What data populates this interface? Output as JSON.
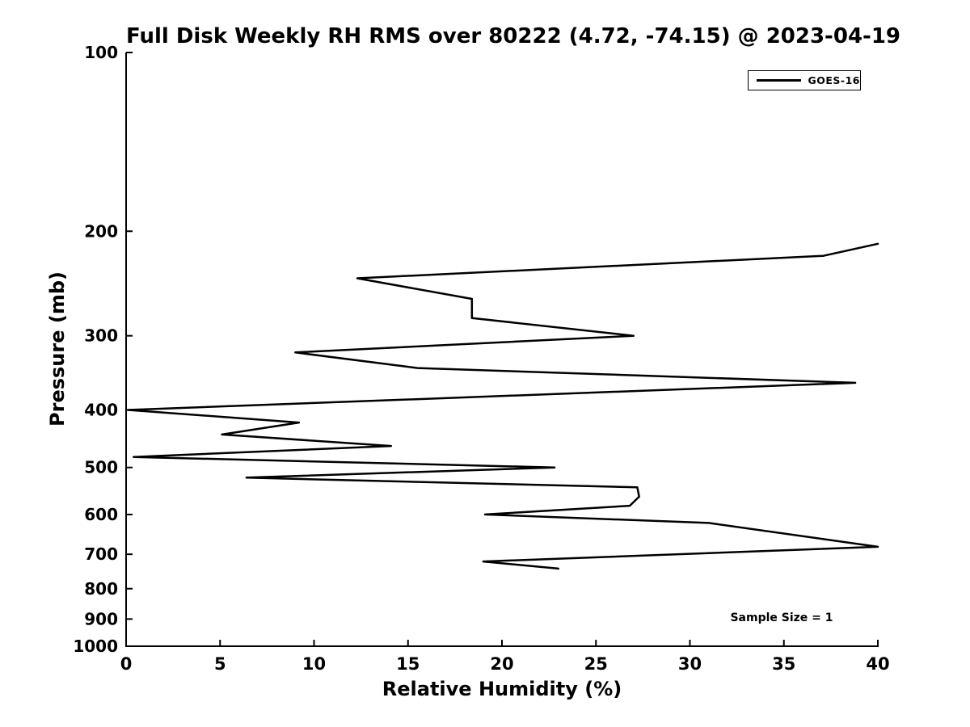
{
  "chart_data": {
    "type": "line",
    "title": "Full Disk Weekly RH RMS over 80222 (4.72, -74.15) @ 2023-04-19",
    "xlabel": "Relative Humidity (%)",
    "ylabel": "Pressure (mb)",
    "xlim": [
      0,
      40
    ],
    "ylim_pressure_mb": [
      1000,
      100
    ],
    "y_scale": "log",
    "x_ticks": [
      0,
      5,
      10,
      15,
      20,
      25,
      30,
      35,
      40
    ],
    "y_ticks": [
      100,
      200,
      300,
      400,
      500,
      600,
      700,
      800,
      900,
      1000
    ],
    "grid": false,
    "legend_position": "upper-right",
    "annotation": "Sample Size = 1",
    "colors": {
      "line": "#000000",
      "text": "#000000",
      "axis": "#000000",
      "background": "#ffffff"
    },
    "series": [
      {
        "name": "GOES-16",
        "color": "#000000",
        "points": [
          {
            "pressure_mb": 210,
            "rh_rms": 40.0
          },
          {
            "pressure_mb": 220,
            "rh_rms": 37.1
          },
          {
            "pressure_mb": 240,
            "rh_rms": 12.3
          },
          {
            "pressure_mb": 260,
            "rh_rms": 18.4
          },
          {
            "pressure_mb": 280,
            "rh_rms": 18.4
          },
          {
            "pressure_mb": 300,
            "rh_rms": 27.0
          },
          {
            "pressure_mb": 320,
            "rh_rms": 9.0
          },
          {
            "pressure_mb": 340,
            "rh_rms": 15.5
          },
          {
            "pressure_mb": 360,
            "rh_rms": 38.8
          },
          {
            "pressure_mb": 400,
            "rh_rms": 0.1
          },
          {
            "pressure_mb": 420,
            "rh_rms": 9.2
          },
          {
            "pressure_mb": 440,
            "rh_rms": 5.1
          },
          {
            "pressure_mb": 460,
            "rh_rms": 14.1
          },
          {
            "pressure_mb": 480,
            "rh_rms": 0.4
          },
          {
            "pressure_mb": 500,
            "rh_rms": 22.8
          },
          {
            "pressure_mb": 520,
            "rh_rms": 6.4
          },
          {
            "pressure_mb": 540,
            "rh_rms": 27.2
          },
          {
            "pressure_mb": 560,
            "rh_rms": 27.3
          },
          {
            "pressure_mb": 580,
            "rh_rms": 26.8
          },
          {
            "pressure_mb": 600,
            "rh_rms": 19.1
          },
          {
            "pressure_mb": 620,
            "rh_rms": 31.0
          },
          {
            "pressure_mb": 680,
            "rh_rms": 40.0
          },
          {
            "pressure_mb": 720,
            "rh_rms": 19.0
          },
          {
            "pressure_mb": 740,
            "rh_rms": 23.0
          }
        ]
      }
    ]
  }
}
